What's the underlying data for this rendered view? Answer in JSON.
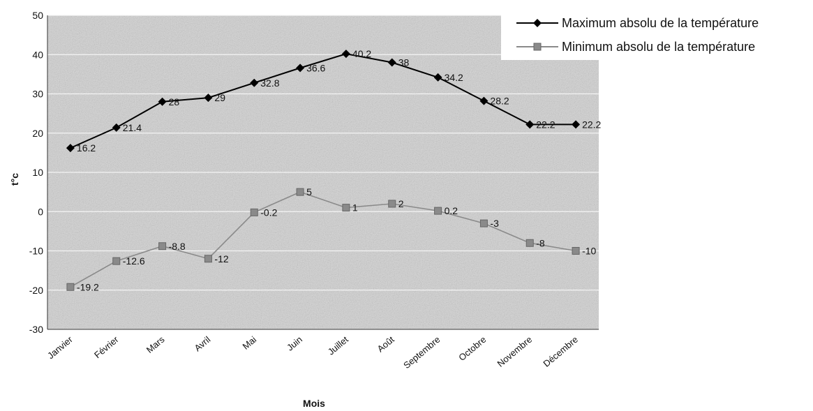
{
  "chart_data": {
    "type": "line",
    "categories": [
      "Janvier",
      "Février",
      "Mars",
      "Avril",
      "Mai",
      "Juin",
      "Juillet",
      "Août",
      "Septembre",
      "Octobre",
      "Novembre",
      "Décembre"
    ],
    "series": [
      {
        "name": "Maximum absolu de la température",
        "values": [
          16.2,
          21.4,
          28,
          29,
          32.8,
          36.6,
          40.2,
          38,
          34.2,
          28.2,
          22.2,
          22.2
        ],
        "labels": [
          "16.2",
          "21.4",
          "28",
          "29",
          "32.8",
          "36.6",
          "40.2",
          "38",
          "34.2",
          "28.2",
          "22.2",
          "22.2"
        ],
        "color": "#000000",
        "marker": "diamond"
      },
      {
        "name": "Minimum absolu de la température",
        "values": [
          -19.2,
          -12.6,
          -8.8,
          -12,
          -0.2,
          5,
          1,
          2,
          0.2,
          -3,
          -8,
          -10
        ],
        "labels": [
          "-19.2",
          "-12.6",
          "-8.8",
          "-12",
          "-0.2",
          "5",
          "1",
          "2",
          "0.2",
          "-3",
          "-8",
          "-10"
        ],
        "color": "#8a8a8a",
        "marker": "square"
      }
    ],
    "xlabel": "Mois",
    "ylabel": "t°c",
    "ylim": [
      -30,
      50
    ],
    "yticks": [
      50,
      40,
      30,
      20,
      10,
      0,
      -10,
      -20,
      -30
    ],
    "grid": true,
    "legend": "top-right"
  }
}
